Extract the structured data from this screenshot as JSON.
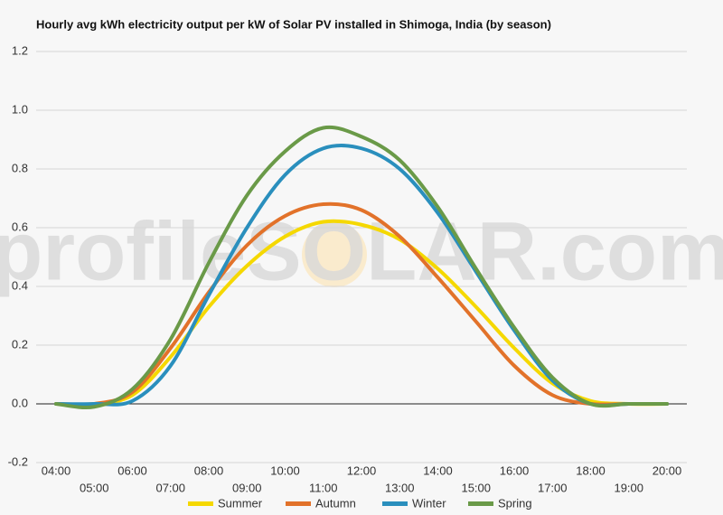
{
  "chart_data": {
    "type": "line",
    "title": "Hourly avg kWh electricity output per kW of Solar PV installed in Shimoga, India (by season)",
    "watermark": "profileSOLAR.com",
    "categories": [
      "04:00",
      "05:00",
      "06:00",
      "07:00",
      "08:00",
      "09:00",
      "10:00",
      "11:00",
      "12:00",
      "13:00",
      "14:00",
      "15:00",
      "16:00",
      "17:00",
      "18:00",
      "19:00",
      "20:00"
    ],
    "series": [
      {
        "name": "Summer",
        "color": "#f5d800",
        "values": [
          0,
          0,
          0.03,
          0.16,
          0.33,
          0.47,
          0.57,
          0.62,
          0.61,
          0.56,
          0.46,
          0.33,
          0.19,
          0.07,
          0.01,
          0,
          0
        ]
      },
      {
        "name": "Autumn",
        "color": "#e2722a",
        "values": [
          0,
          0,
          0.04,
          0.19,
          0.38,
          0.54,
          0.64,
          0.68,
          0.66,
          0.57,
          0.43,
          0.28,
          0.13,
          0.03,
          0,
          0,
          0
        ]
      },
      {
        "name": "Winter",
        "color": "#2a8fbd",
        "values": [
          0,
          0,
          0.01,
          0.13,
          0.37,
          0.6,
          0.78,
          0.87,
          0.87,
          0.8,
          0.65,
          0.45,
          0.25,
          0.08,
          0,
          0,
          0
        ]
      },
      {
        "name": "Spring",
        "color": "#6a9a48",
        "values": [
          0,
          -0.01,
          0.05,
          0.22,
          0.48,
          0.71,
          0.86,
          0.94,
          0.91,
          0.83,
          0.67,
          0.46,
          0.26,
          0.09,
          0,
          0,
          0
        ]
      }
    ],
    "ylim": [
      -0.2,
      1.2
    ],
    "yticks": [
      -0.2,
      {
        "value": 0,
        "label": "0.0"
      },
      0.2,
      0.4,
      0.6,
      0.8,
      {
        "value": 1,
        "label": "1.0"
      },
      1.2
    ],
    "grid": true,
    "legend": "bottom"
  }
}
